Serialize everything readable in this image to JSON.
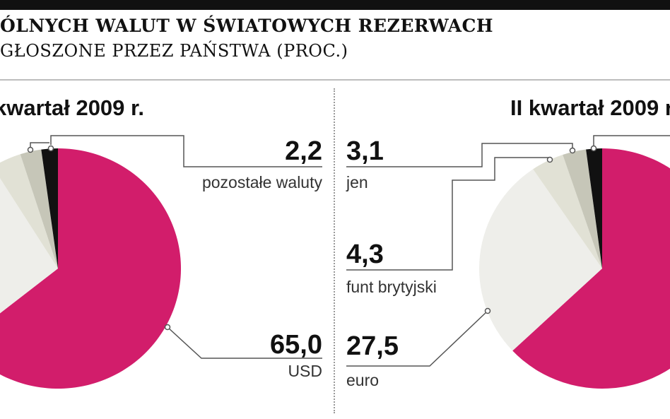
{
  "header": {
    "title": "ÓLNYCH WALUT W ŚWIATOWYCH REZERWACH",
    "subtitle": "GŁOSZONE PRZEZ PAŃSTWA (PROC.)"
  },
  "colors": {
    "USD": "#d21d6b",
    "euro": "#eeeeea",
    "funt brytyjski": "#e1e1d5",
    "jen": "#c6c6b8",
    "pozostałe waluty": "#111111",
    "leader": "#555555"
  },
  "chart_data": [
    {
      "type": "pie",
      "title": "kwartał 2009 r.",
      "slices": [
        {
          "label": "USD",
          "value": 65.0,
          "value_text": "65,0"
        },
        {
          "label": "euro",
          "value": 27.0
        },
        {
          "label": "funt brytyjski",
          "value": 4.0
        },
        {
          "label": "jen",
          "value": 2.8
        },
        {
          "label": "pozostałe waluty",
          "value": 2.2,
          "value_text": "2,2"
        }
      ]
    },
    {
      "type": "pie",
      "title": "II kwartał 2009 r.",
      "slices": [
        {
          "label": "USD",
          "value": 63.0
        },
        {
          "label": "euro",
          "value": 27.5,
          "value_text": "27,5"
        },
        {
          "label": "funt brytyjski",
          "value": 4.3,
          "value_text": "4,3"
        },
        {
          "label": "jen",
          "value": 3.1,
          "value_text": "3,1"
        },
        {
          "label": "pozostałe waluty",
          "value": 2.1
        }
      ]
    }
  ]
}
